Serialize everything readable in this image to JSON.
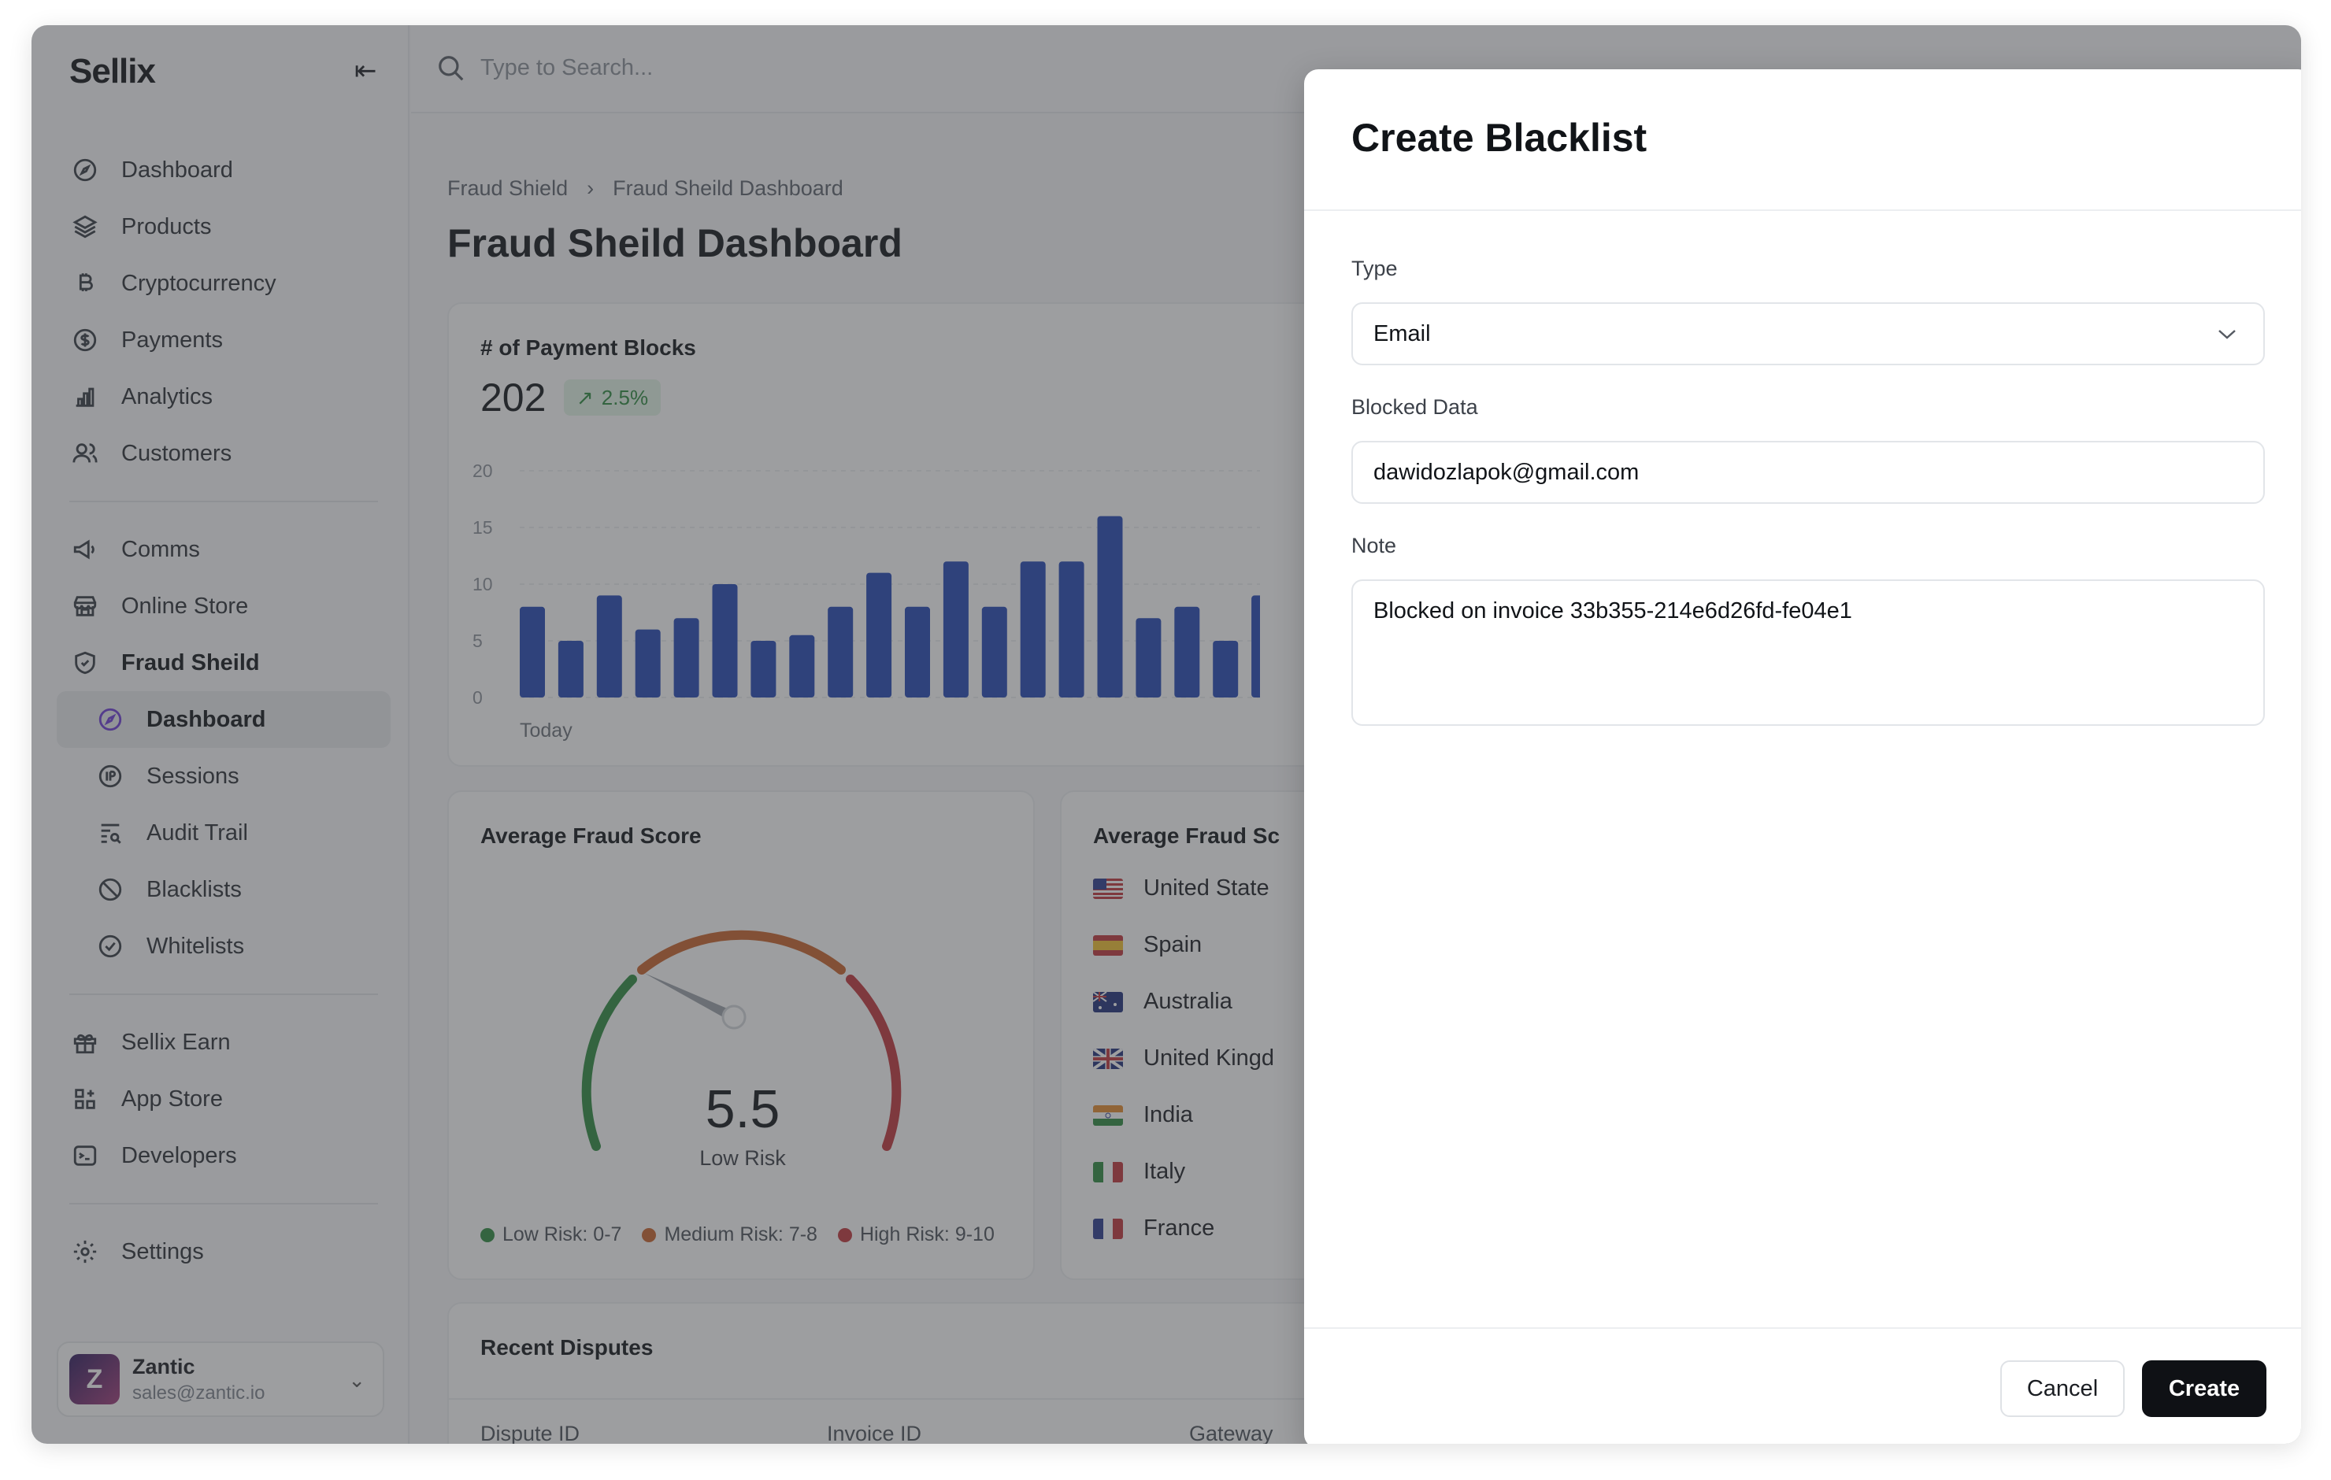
{
  "brand": "Sellix",
  "search": {
    "placeholder": "Type to Search..."
  },
  "sidebar": {
    "group1": [
      {
        "label": "Dashboard",
        "icon": "dashboard-icon"
      },
      {
        "label": "Products",
        "icon": "layers-icon"
      },
      {
        "label": "Cryptocurrency",
        "icon": "bitcoin-icon"
      },
      {
        "label": "Payments",
        "icon": "dollar-icon"
      },
      {
        "label": "Analytics",
        "icon": "bar-chart-icon"
      },
      {
        "label": "Customers",
        "icon": "users-icon"
      }
    ],
    "group2": [
      {
        "label": "Comms",
        "icon": "megaphone-icon"
      },
      {
        "label": "Online Store",
        "icon": "store-icon"
      },
      {
        "label": "Fraud Sheild",
        "icon": "shield-icon"
      }
    ],
    "fraud_sub": [
      {
        "label": "Dashboard",
        "icon": "dashboard-icon"
      },
      {
        "label": "Sessions",
        "icon": "ip-icon"
      },
      {
        "label": "Audit Trail",
        "icon": "list-search-icon"
      },
      {
        "label": "Blacklists",
        "icon": "ban-icon"
      },
      {
        "label": "Whitelists",
        "icon": "check-circle-icon"
      }
    ],
    "group3": [
      {
        "label": "Sellix Earn",
        "icon": "gift-icon"
      },
      {
        "label": "App Store",
        "icon": "apps-icon"
      },
      {
        "label": "Developers",
        "icon": "terminal-icon"
      }
    ],
    "settings": {
      "label": "Settings",
      "icon": "gear-icon"
    },
    "user": {
      "name": "Zantic",
      "email": "sales@zantic.io"
    }
  },
  "breadcrumb": [
    "Fraud Shield",
    "Fraud Sheild Dashboard"
  ],
  "page_title": "Fraud Sheild Dashboard",
  "blocks_card": {
    "title": "# of Payment Blocks",
    "value": "202",
    "trend": "2.5%",
    "x_label": "Today"
  },
  "chart_data": {
    "type": "bar",
    "title": "# of Payment Blocks",
    "ylim": [
      0,
      20
    ],
    "yticks": [
      "0",
      "5",
      "10",
      "15",
      "20"
    ],
    "x_tick_labels": [
      "Today"
    ],
    "values": [
      8,
      5,
      9,
      6,
      7,
      10,
      5,
      5.5,
      8,
      11,
      8,
      12,
      8,
      12,
      12,
      16,
      7,
      8,
      5,
      9
    ],
    "color": "#2347b5",
    "grid": true
  },
  "score_card": {
    "title": "Average Fraud Score",
    "value": "5.5",
    "label": "Low Risk",
    "score": 5.5,
    "legend": [
      {
        "label": "Low Risk: 0-7",
        "color": "#2c8a3f"
      },
      {
        "label": "Medium Risk: 7-8",
        "color": "#c9622a"
      },
      {
        "label": "High Risk: 9-10",
        "color": "#c0353a"
      }
    ]
  },
  "country_card": {
    "title": "Average Fraud Sc",
    "countries": [
      {
        "name": "United State",
        "flag": "us"
      },
      {
        "name": "Spain",
        "flag": "es"
      },
      {
        "name": "Australia",
        "flag": "au"
      },
      {
        "name": "United Kingd",
        "flag": "gb"
      },
      {
        "name": "India",
        "flag": "in"
      },
      {
        "name": "Italy",
        "flag": "it"
      },
      {
        "name": "France",
        "flag": "fr"
      }
    ]
  },
  "disputes": {
    "title": "Recent Disputes",
    "columns": [
      "Dispute ID",
      "Invoice ID",
      "Gateway"
    ]
  },
  "modal": {
    "title": "Create Blacklist",
    "type_label": "Type",
    "type_value": "Email",
    "data_label": "Blocked Data",
    "data_value": "dawidozlapok@gmail.com",
    "note_label": "Note",
    "note_value": "Blocked on invoice 33b355-214e6d26fd-fe04e1",
    "cancel": "Cancel",
    "create": "Create"
  }
}
